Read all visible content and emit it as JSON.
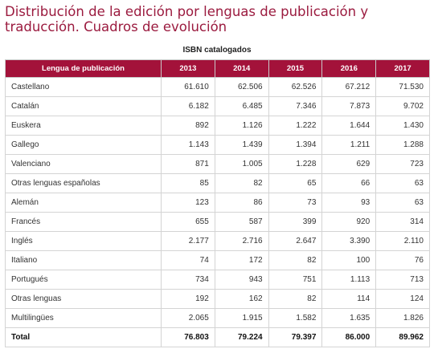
{
  "page": {
    "title": "Distribución de la edición por lenguas de publicación y traducción. Cuadros de evolución"
  },
  "table": {
    "caption": "ISBN catalogados",
    "headers": [
      "Lengua de publicación",
      "2013",
      "2014",
      "2015",
      "2016",
      "2017"
    ],
    "rows": [
      [
        "Castellano",
        "61.610",
        "62.506",
        "62.526",
        "67.212",
        "71.530"
      ],
      [
        "Catalán",
        "6.182",
        "6.485",
        "7.346",
        "7.873",
        "9.702"
      ],
      [
        "Euskera",
        "892",
        "1.126",
        "1.222",
        "1.644",
        "1.430"
      ],
      [
        "Gallego",
        "1.143",
        "1.439",
        "1.394",
        "1.211",
        "1.288"
      ],
      [
        "Valenciano",
        "871",
        "1.005",
        "1.228",
        "629",
        "723"
      ],
      [
        "Otras lenguas españolas",
        "85",
        "82",
        "65",
        "66",
        "63"
      ],
      [
        "Alemán",
        "123",
        "86",
        "73",
        "93",
        "63"
      ],
      [
        "Francés",
        "655",
        "587",
        "399",
        "920",
        "314"
      ],
      [
        "Inglés",
        "2.177",
        "2.716",
        "2.647",
        "3.390",
        "2.110"
      ],
      [
        "Italiano",
        "74",
        "172",
        "82",
        "100",
        "76"
      ],
      [
        "Portugués",
        "734",
        "943",
        "751",
        "1.113",
        "713"
      ],
      [
        "Otras lenguas",
        "192",
        "162",
        "82",
        "114",
        "124"
      ],
      [
        "Multilingües",
        "2.065",
        "1.915",
        "1.582",
        "1.635",
        "1.826"
      ]
    ],
    "total": [
      "Total",
      "76.803",
      "79.224",
      "79.397",
      "86.000",
      "89.962"
    ]
  }
}
